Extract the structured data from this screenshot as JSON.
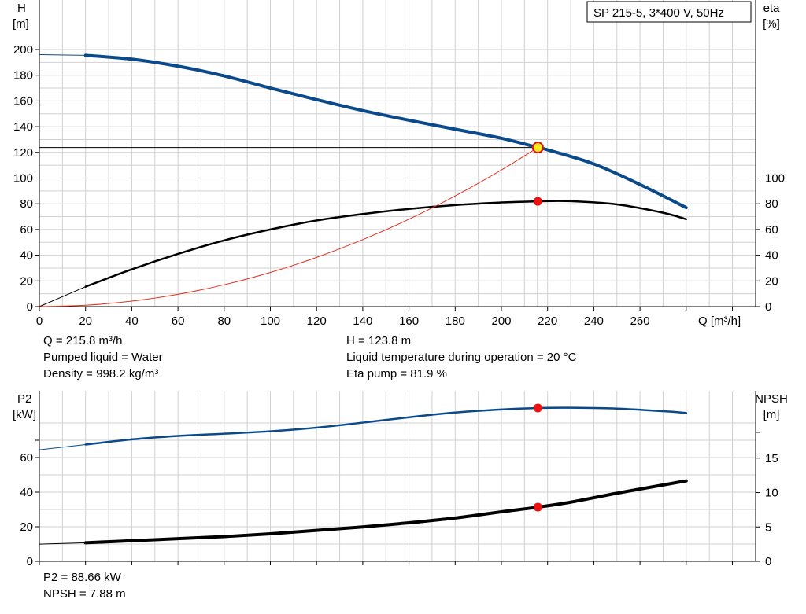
{
  "chart_data": [
    {
      "type": "line",
      "title": "SP 215-5, 3*400 V, 50Hz",
      "x_axis": {
        "label": "Q [m³/h]",
        "range": [
          0,
          300
        ],
        "ticks": [
          0,
          20,
          40,
          60,
          80,
          100,
          120,
          140,
          160,
          180,
          200,
          220,
          240,
          260
        ]
      },
      "y_left": {
        "label_line1": "H",
        "label_line2": "[m]",
        "range": [
          0,
          200
        ],
        "ticks": [
          0,
          20,
          40,
          60,
          80,
          100,
          120,
          140,
          160,
          180,
          200
        ]
      },
      "y_right": {
        "label_line1": "eta",
        "label_line2": "[%]",
        "range": [
          0,
          200
        ],
        "ticks": [
          0,
          20,
          40,
          60,
          80,
          100
        ]
      },
      "grid": true,
      "series": [
        {
          "name": "H",
          "axis": "left",
          "color": "#0a4a8a",
          "stroke": 4,
          "lead_in": [
            [
              0,
              196
            ],
            [
              20,
              195.5
            ]
          ],
          "points": [
            [
              20,
              195.5
            ],
            [
              40,
              192.5
            ],
            [
              60,
              187
            ],
            [
              80,
              179.5
            ],
            [
              100,
              170
            ],
            [
              120,
              161
            ],
            [
              140,
              152.5
            ],
            [
              160,
              145
            ],
            [
              180,
              138
            ],
            [
              200,
              131
            ],
            [
              215.8,
              123.8
            ],
            [
              220,
              122
            ],
            [
              240,
              111
            ],
            [
              260,
              95
            ],
            [
              280,
              77
            ]
          ]
        },
        {
          "name": "eta",
          "axis": "right",
          "color": "#000000",
          "stroke": 2.5,
          "lead_in": [
            [
              0,
              0
            ],
            [
              20,
              15.5
            ]
          ],
          "points": [
            [
              20,
              15.5
            ],
            [
              40,
              29
            ],
            [
              60,
              41
            ],
            [
              80,
              51.5
            ],
            [
              100,
              60
            ],
            [
              120,
              67
            ],
            [
              140,
              72
            ],
            [
              160,
              76
            ],
            [
              180,
              79
            ],
            [
              200,
              81
            ],
            [
              215.8,
              81.9
            ],
            [
              230,
              82
            ],
            [
              250,
              79.5
            ],
            [
              270,
              73
            ],
            [
              280,
              68
            ]
          ]
        },
        {
          "name": "system curve",
          "axis": "left",
          "color": "#e03020",
          "stroke": 1,
          "lead_in": [],
          "points": [
            [
              0,
              0
            ],
            [
              20,
              1.06
            ],
            [
              40,
              4.25
            ],
            [
              60,
              9.56
            ],
            [
              80,
              17.0
            ],
            [
              100,
              26.6
            ],
            [
              120,
              38.3
            ],
            [
              140,
              52.1
            ],
            [
              160,
              68.0
            ],
            [
              180,
              86.1
            ],
            [
              200,
              106.3
            ],
            [
              215.8,
              123.8
            ]
          ]
        }
      ],
      "operating_point": {
        "q": 215.8,
        "h": 123.8,
        "eta": 81.9
      },
      "marker_colors": {
        "duty_fill": "#f5ea22",
        "duty_stroke": "#e01010",
        "point": "#ee1111"
      }
    },
    {
      "type": "line",
      "x_axis": {
        "range": [
          0,
          300
        ],
        "ticks": [
          0,
          20,
          40,
          60,
          80,
          100,
          120,
          140,
          160,
          180,
          200,
          220,
          240,
          260
        ]
      },
      "y_left": {
        "label_line1": "P2",
        "label_line2": "[kW]",
        "range": [
          0,
          80
        ],
        "ticks": [
          0,
          20,
          40,
          60
        ]
      },
      "y_right": {
        "label_line1": "NPSH",
        "label_line2": "[m]",
        "range": [
          0,
          20
        ],
        "ticks": [
          0,
          5,
          10,
          15
        ]
      },
      "grid": true,
      "series": [
        {
          "name": "P2",
          "axis": "left",
          "color": "#0a4a8a",
          "stroke": 2.5,
          "lead_in": [
            [
              0,
              64.5
            ],
            [
              20,
              67.5
            ]
          ],
          "points": [
            [
              20,
              67.5
            ],
            [
              40,
              70.5
            ],
            [
              60,
              72.5
            ],
            [
              80,
              73.8
            ],
            [
              100,
              75.2
            ],
            [
              120,
              77.3
            ],
            [
              140,
              80.2
            ],
            [
              160,
              83.3
            ],
            [
              180,
              86
            ],
            [
              200,
              87.8
            ],
            [
              215.8,
              88.66
            ],
            [
              230,
              88.8
            ],
            [
              250,
              88.3
            ],
            [
              270,
              86.8
            ],
            [
              280,
              85.8
            ]
          ]
        },
        {
          "name": "NPSH",
          "axis": "right",
          "color": "#000000",
          "stroke": 4,
          "lead_in": [
            [
              0,
              2.5
            ],
            [
              20,
              2.7
            ]
          ],
          "points": [
            [
              20,
              2.7
            ],
            [
              40,
              3.0
            ],
            [
              60,
              3.3
            ],
            [
              80,
              3.6
            ],
            [
              100,
              4.0
            ],
            [
              120,
              4.5
            ],
            [
              140,
              5.0
            ],
            [
              160,
              5.6
            ],
            [
              180,
              6.3
            ],
            [
              200,
              7.2
            ],
            [
              215.8,
              7.88
            ],
            [
              230,
              8.6
            ],
            [
              250,
              9.9
            ],
            [
              270,
              11.1
            ],
            [
              280,
              11.7
            ]
          ]
        }
      ],
      "operating_point": {
        "q": 215.8,
        "p2": 88.66,
        "npsh": 7.88
      }
    }
  ],
  "info_top": {
    "q": "Q = 215.8 m³/h",
    "liquid": "Pumped liquid = Water",
    "density": "Density = 998.2 kg/m³",
    "h": "H = 123.8 m",
    "temperature": "Liquid temperature during operation = 20 °C",
    "eta": "Eta pump = 81.9 %"
  },
  "info_bottom": {
    "p2": "P2 = 88.66 kW",
    "npsh": "NPSH = 7.88 m"
  }
}
